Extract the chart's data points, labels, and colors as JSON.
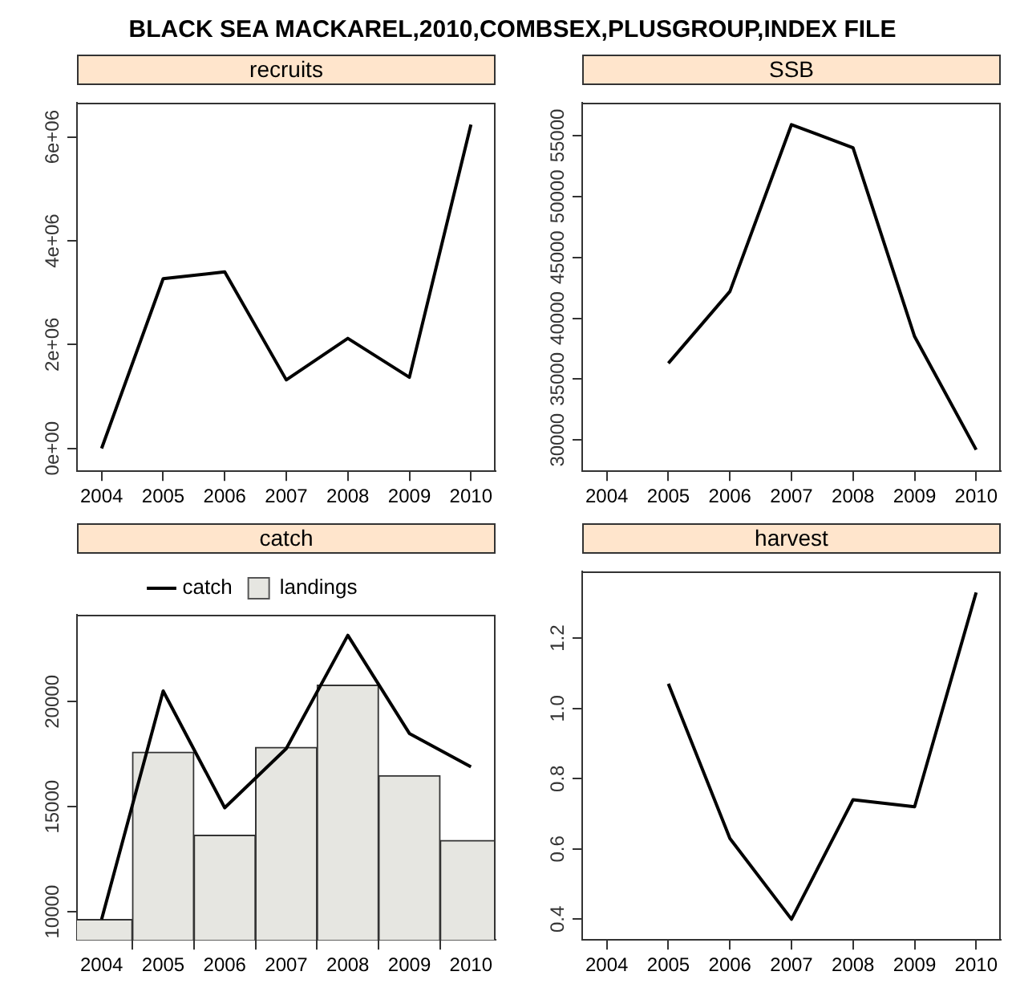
{
  "chart_data": [
    {
      "type": "line",
      "title": "BLACK SEA MACKAREL,2010,COMBSEX,PLUSGROUP,INDEX FILE",
      "subtitle": "recruits",
      "x": [
        2004,
        2005,
        2006,
        2007,
        2008,
        2009,
        2010
      ],
      "series": [
        {
          "color": "#000000",
          "values": [
            0,
            3270000,
            3400000,
            1320000,
            2120000,
            1370000,
            6240000
          ]
        }
      ],
      "xlim": [
        2003.6,
        2010.4
      ],
      "xticks": [
        2004,
        2005,
        2006,
        2007,
        2008,
        2009,
        2010
      ],
      "ylim": [
        -440000,
        6660000
      ],
      "yticks": [
        {
          "value": 0,
          "label": "0e+00"
        },
        {
          "value": 2000000,
          "label": "2e+06"
        },
        {
          "value": 4000000,
          "label": "4e+06"
        },
        {
          "value": 6000000,
          "label": "6e+06"
        }
      ],
      "grid": false,
      "legend": false,
      "marker": "none",
      "line_style": "solid"
    },
    {
      "type": "line",
      "subtitle": "SSB",
      "x": [
        2005,
        2006,
        2007,
        2008,
        2009,
        2010
      ],
      "series": [
        {
          "color": "#000000",
          "values": [
            36300,
            42200,
            55900,
            54000,
            38500,
            29200
          ]
        }
      ],
      "xlim": [
        2003.6,
        2010.4
      ],
      "xticks": [
        2004,
        2005,
        2006,
        2007,
        2008,
        2009,
        2010
      ],
      "ylim": [
        27430,
        57700
      ],
      "yticks": [
        30000,
        35000,
        40000,
        45000,
        50000,
        55000
      ],
      "grid": false,
      "legend": false,
      "marker": "none",
      "line_style": "solid"
    },
    {
      "type": "line",
      "subtitle": "catch",
      "x": [
        2004,
        2005,
        2006,
        2007,
        2008,
        2009,
        2010
      ],
      "series": [
        {
          "name": "catch",
          "type": "line",
          "color": "#000000",
          "values": [
            9640,
            20510,
            14950,
            17770,
            23160,
            18490,
            16900
          ]
        },
        {
          "name": "landings",
          "type": "bar",
          "color": "#e6e6e1",
          "values": [
            9640,
            17600,
            13650,
            17830,
            20790,
            16480,
            13400
          ]
        }
      ],
      "xlim": [
        2003.6,
        2010.4
      ],
      "xticks": [
        2004,
        2005,
        2006,
        2007,
        2008,
        2009,
        2010
      ],
      "ylim": [
        8660,
        24140
      ],
      "yticks": [
        10000,
        15000,
        20000
      ],
      "grid": false,
      "legend": "top",
      "marker": "none",
      "line_style": "solid"
    },
    {
      "type": "line",
      "subtitle": "harvest",
      "x": [
        2005,
        2006,
        2007,
        2008,
        2009,
        2010
      ],
      "series": [
        {
          "color": "#000000",
          "values": [
            1.07,
            0.63,
            0.4,
            0.74,
            0.72,
            1.33
          ]
        }
      ],
      "xlim": [
        2003.6,
        2010.4
      ],
      "xticks": [
        2004,
        2005,
        2006,
        2007,
        2008,
        2009,
        2010
      ],
      "ylim": [
        0.341,
        1.39
      ],
      "yticks": [
        {
          "value": 0.4,
          "label": "0.4"
        },
        {
          "value": 0.6,
          "label": "0.6"
        },
        {
          "value": 0.8,
          "label": "0.8"
        },
        {
          "value": 1.0,
          "label": "1.0"
        },
        {
          "value": 1.2,
          "label": "1.2"
        }
      ],
      "grid": false,
      "legend": false,
      "marker": "none",
      "line_style": "solid"
    }
  ]
}
